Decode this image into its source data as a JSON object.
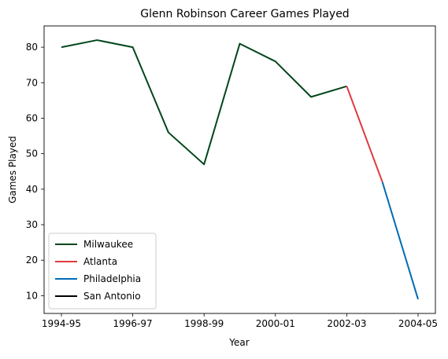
{
  "chart_data": {
    "type": "line",
    "title": "Glenn Robinson Career Games Played",
    "xlabel": "Year",
    "ylabel": "Games Played",
    "x": [
      "1994-95",
      "1995-96",
      "1996-97",
      "1997-98",
      "1998-99",
      "1999-00",
      "2000-01",
      "2001-02",
      "2002-03",
      "2003-04",
      "2004-05"
    ],
    "xticks": [
      "1994-95",
      "1996-97",
      "1998-99",
      "2000-01",
      "2002-03",
      "2004-05"
    ],
    "yticks": [
      10,
      20,
      30,
      40,
      50,
      60,
      70,
      80
    ],
    "ylim": [
      5,
      86
    ],
    "series": [
      {
        "name": "Milwaukee",
        "color": "#00471B",
        "x": [
          "1994-95",
          "1995-96",
          "1996-97",
          "1997-98",
          "1998-99",
          "1999-00",
          "2000-01",
          "2001-02",
          "2002-03"
        ],
        "values": [
          80,
          82,
          80,
          56,
          47,
          81,
          76,
          66,
          69
        ]
      },
      {
        "name": "Atlanta",
        "color": "#E03A3E",
        "x": [
          "2002-03",
          "2003-04"
        ],
        "values": [
          69,
          42
        ]
      },
      {
        "name": "Philadelphia",
        "color": "#006BB6",
        "x": [
          "2003-04",
          "2004-05"
        ],
        "values": [
          42,
          9
        ]
      },
      {
        "name": "San Antonio",
        "color": "#000000",
        "x": [],
        "values": []
      }
    ],
    "legend_position": "lower-left",
    "grid": false
  }
}
